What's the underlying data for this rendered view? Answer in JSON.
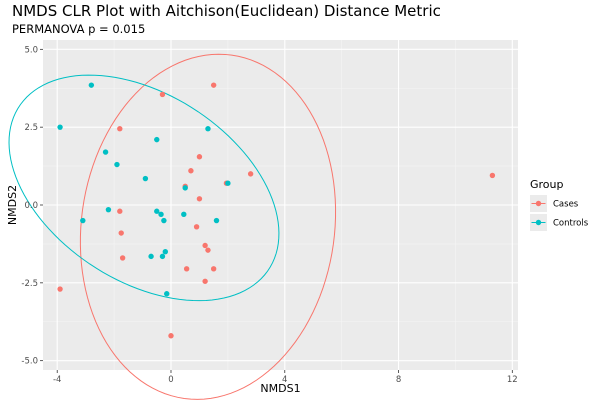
{
  "chart_data": {
    "type": "scatter",
    "title": "NMDS CLR Plot with Aitchison(Euclidean) Distance Metric",
    "subtitle": "PERMANOVA p = 0.015",
    "xlabel": "NMDS1",
    "ylabel": "NMDS2",
    "xlim": [
      -4.5,
      12.2
    ],
    "ylim": [
      -5.3,
      5.3
    ],
    "x_ticks": [
      -4,
      0,
      4,
      8,
      12
    ],
    "y_ticks": [
      -5.0,
      -2.5,
      0.0,
      2.5,
      5.0
    ],
    "x_tick_labels": [
      "-4",
      "0",
      "4",
      "8",
      "12"
    ],
    "y_tick_labels": [
      "-5.0",
      "-2.5",
      "0.0",
      "2.5",
      "5.0"
    ],
    "grid": true,
    "legend_title": "Group",
    "legend_position": "right",
    "series": [
      {
        "name": "Cases",
        "color": "#F8766D",
        "points": [
          [
            -3.9,
            -2.7
          ],
          [
            -1.8,
            2.45
          ],
          [
            -1.8,
            -0.2
          ],
          [
            -1.75,
            -0.9
          ],
          [
            -1.7,
            -1.7
          ],
          [
            -0.3,
            3.55
          ],
          [
            1.5,
            3.85
          ],
          [
            1.0,
            1.55
          ],
          [
            0.7,
            1.1
          ],
          [
            0.5,
            0.6
          ],
          [
            1.0,
            0.2
          ],
          [
            1.95,
            0.7
          ],
          [
            2.8,
            1.0
          ],
          [
            11.3,
            0.95
          ],
          [
            0.9,
            -0.7
          ],
          [
            1.2,
            -1.3
          ],
          [
            1.3,
            -1.45
          ],
          [
            1.5,
            -2.05
          ],
          [
            0.55,
            -2.05
          ],
          [
            1.2,
            -2.45
          ],
          [
            0.0,
            -4.2
          ]
        ],
        "ellipse": {
          "cx": 1.3,
          "cy": -0.7,
          "rx": 5.58,
          "ry": 4.44,
          "angle_deg": 79
        }
      },
      {
        "name": "Controls",
        "color": "#00BFC4",
        "points": [
          [
            -2.8,
            3.85
          ],
          [
            -3.9,
            2.5
          ],
          [
            -2.3,
            1.7
          ],
          [
            -1.9,
            1.3
          ],
          [
            -0.5,
            2.1
          ],
          [
            -0.9,
            0.85
          ],
          [
            0.5,
            0.55
          ],
          [
            1.3,
            2.45
          ],
          [
            2.0,
            0.7
          ],
          [
            -2.2,
            -0.15
          ],
          [
            -3.1,
            -0.5
          ],
          [
            -0.5,
            -0.2
          ],
          [
            -0.35,
            -0.3
          ],
          [
            0.45,
            -0.3
          ],
          [
            -0.25,
            -0.5
          ],
          [
            1.6,
            -0.5
          ],
          [
            -0.2,
            -1.5
          ],
          [
            -0.7,
            -1.65
          ],
          [
            -0.3,
            -1.65
          ],
          [
            -0.15,
            -2.85
          ]
        ],
        "ellipse": {
          "cx": -0.95,
          "cy": 0.55,
          "rx": 3.07,
          "ry": 5.12,
          "angle_deg": 62
        }
      }
    ]
  }
}
